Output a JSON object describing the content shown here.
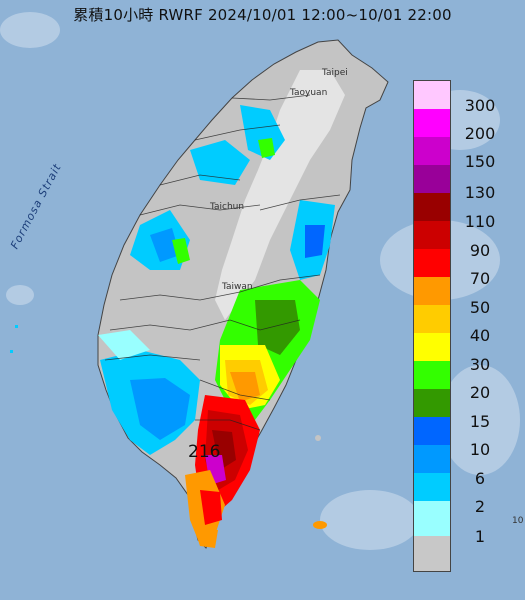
{
  "title": "累積10小時 RWRF 2024/10/01 12:00~10/01 22:00",
  "map_labels": {
    "strait": "Formosa Strait",
    "taipei": "Taipei",
    "taoyuan": "Taoyuan",
    "taichung": "Taichun",
    "taiwan": "Taiwan",
    "edge_mark": "10"
  },
  "max_value_label": "216",
  "legend": {
    "labels": [
      "300",
      "200",
      "150",
      "130",
      "110",
      "90",
      "70",
      "50",
      "40",
      "30",
      "20",
      "15",
      "10",
      "6",
      "2",
      "1"
    ],
    "colors": [
      "#ffc8ff",
      "#ff00ff",
      "#cc00cc",
      "#990099",
      "#990000",
      "#cc0000",
      "#ff0000",
      "#ff9900",
      "#ffcc00",
      "#ffff00",
      "#33ff00",
      "#339900",
      "#0066ff",
      "#0099ff",
      "#00ccff",
      "#99ffff",
      "#c8c8c8"
    ]
  },
  "colors": {
    "sea": "#8fb3d6",
    "land": "#c4c4c4",
    "mountain": "#e6e6e6"
  }
}
